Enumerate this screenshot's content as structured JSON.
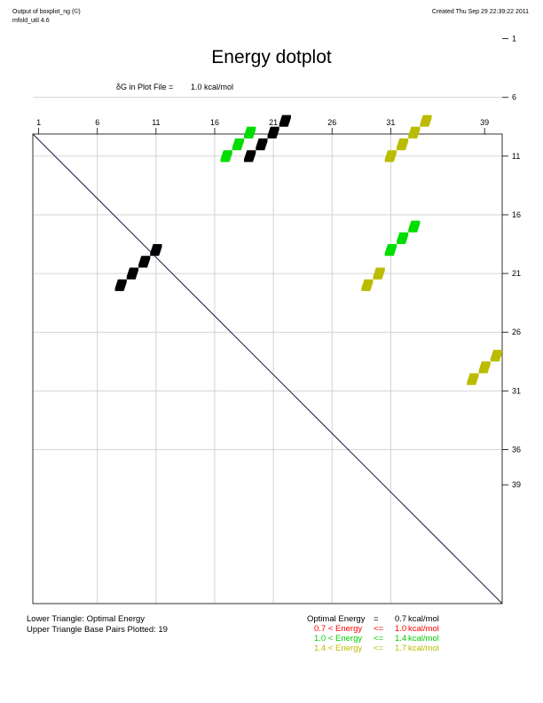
{
  "header": {
    "left_line1": "Output of boxplot_ng (©)",
    "left_line2": "mfold_util 4.6",
    "right": "Created Thu Sep 29 22:39:22 2011"
  },
  "title": "Energy dotplot",
  "delta_g": {
    "label": "δG in Plot File =",
    "value": "1.0 kcal/mol"
  },
  "footer": {
    "lower_triangle": "Lower Triangle: Optimal Energy",
    "upper_triangle": "Upper Triangle Base Pairs Plotted: 19"
  },
  "legend": [
    {
      "left": "Optimal Energy",
      "op": "=",
      "value": "0.7",
      "unit": "kcal/mol",
      "color": "#000000"
    },
    {
      "left": "0.7 < Energy",
      "op": "<=",
      "value": "1.0",
      "unit": "kcal/mol",
      "color": "#ff0000"
    },
    {
      "left": "1.0 < Energy",
      "op": "<=",
      "value": "1.4",
      "unit": "kcal/mol",
      "color": "#00cc00"
    },
    {
      "left": "1.4 < Energy",
      "op": "<=",
      "value": "1.7",
      "unit": "kcal/mol",
      "color": "#bbbb00"
    }
  ],
  "chart_data": {
    "type": "scatter",
    "title": "Energy dotplot",
    "x_ticks": [
      1,
      6,
      11,
      16,
      21,
      26,
      31,
      39
    ],
    "y_ticks": [
      1,
      6,
      11,
      16,
      21,
      26,
      31,
      36,
      39
    ],
    "range": [
      0,
      40
    ],
    "colors": {
      "optimal": "#000000",
      "green": "#00dd00",
      "yellow": "#bbbb00"
    },
    "lower_points": [
      {
        "i": 22,
        "j": 8
      },
      {
        "i": 21,
        "j": 9
      },
      {
        "i": 20,
        "j": 10
      },
      {
        "i": 19,
        "j": 11
      }
    ],
    "upper_points": [
      {
        "i": 11,
        "j": 19,
        "level": "optimal"
      },
      {
        "i": 10,
        "j": 20,
        "level": "optimal"
      },
      {
        "i": 9,
        "j": 21,
        "level": "optimal"
      },
      {
        "i": 8,
        "j": 22,
        "level": "optimal"
      },
      {
        "i": 11,
        "j": 17,
        "level": "green"
      },
      {
        "i": 10,
        "j": 18,
        "level": "green"
      },
      {
        "i": 9,
        "j": 19,
        "level": "green"
      },
      {
        "i": 11,
        "j": 31,
        "level": "yellow"
      },
      {
        "i": 10,
        "j": 32,
        "level": "yellow"
      },
      {
        "i": 9,
        "j": 33,
        "level": "yellow"
      },
      {
        "i": 8,
        "j": 34,
        "level": "yellow"
      },
      {
        "i": 17,
        "j": 33,
        "level": "green"
      },
      {
        "i": 18,
        "j": 32,
        "level": "green"
      },
      {
        "i": 19,
        "j": 31,
        "level": "green"
      },
      {
        "i": 21,
        "j": 30,
        "level": "yellow"
      },
      {
        "i": 22,
        "j": 29,
        "level": "yellow"
      },
      {
        "i": 28,
        "j": 40,
        "level": "yellow"
      },
      {
        "i": 29,
        "j": 39,
        "level": "yellow"
      },
      {
        "i": 30,
        "j": 38,
        "level": "yellow"
      }
    ]
  }
}
